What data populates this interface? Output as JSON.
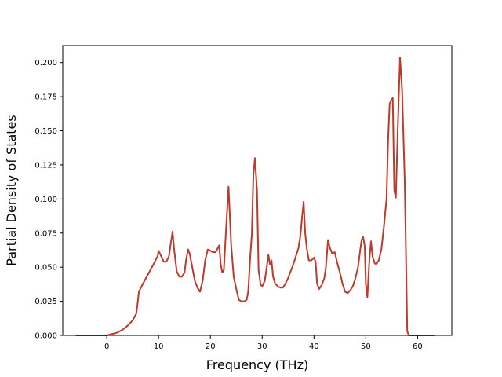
{
  "chart_data": {
    "type": "line",
    "title": "",
    "xlabel": "Frequency (THz)",
    "ylabel": "Partial Density of States",
    "xlim": [
      -8.5,
      66.6
    ],
    "ylim": [
      0,
      0.2125
    ],
    "xticks": [
      0,
      10,
      20,
      30,
      40,
      50,
      60
    ],
    "yticks": [
      0.0,
      0.025,
      0.05,
      0.075,
      0.1,
      0.125,
      0.15,
      0.175,
      0.2
    ],
    "ytick_labels": [
      "0.000",
      "0.025",
      "0.050",
      "0.075",
      "0.100",
      "0.125",
      "0.150",
      "0.175",
      "0.200"
    ],
    "grid": false,
    "legend": "none",
    "line_color": "#c0392b",
    "series": [
      {
        "x": [
          -6.0,
          -2.0,
          0.0,
          1.0,
          2.0,
          3.0,
          4.0,
          5.0,
          5.7,
          6.0,
          6.2,
          7.0,
          8.0,
          9.0,
          9.8,
          10.0,
          10.5,
          11.0,
          11.5,
          12.0,
          12.3,
          12.7,
          13.0,
          13.5,
          14.0,
          14.5,
          15.0,
          15.3,
          15.7,
          16.0,
          17.0,
          17.5,
          18.0,
          18.5,
          19.0,
          19.5,
          20.0,
          20.5,
          21.0,
          21.3,
          21.7,
          22.0,
          22.3,
          22.6,
          23.0,
          23.5,
          24.0,
          24.5,
          25.0,
          25.5,
          26.0,
          26.5,
          27.0,
          27.3,
          27.7,
          28.0,
          28.3,
          28.6,
          29.0,
          29.3,
          29.7,
          30.0,
          30.5,
          30.8,
          31.2,
          31.5,
          31.8,
          32.1,
          32.5,
          33.0,
          33.5,
          34.0,
          34.5,
          35.0,
          36.0,
          36.5,
          37.0,
          37.4,
          37.7,
          38.0,
          38.3,
          38.6,
          39.0,
          39.5,
          40.0,
          40.3,
          40.6,
          41.0,
          41.5,
          42.0,
          42.3,
          42.7,
          43.0,
          43.5,
          44.0,
          44.5,
          45.0,
          45.5,
          46.0,
          46.5,
          47.0,
          47.5,
          48.0,
          48.5,
          48.9,
          49.2,
          49.5,
          49.8,
          50.0,
          50.3,
          50.7,
          51.0,
          51.3,
          51.7,
          52.0,
          52.5,
          53.0,
          53.5,
          54.0,
          54.3,
          54.6,
          55.0,
          55.2,
          55.5,
          55.8,
          56.2,
          56.6,
          57.0,
          57.5,
          57.8,
          58.0,
          58.3,
          60.0,
          63.3
        ],
        "y": [
          0.0,
          0.0,
          0.0,
          0.001,
          0.002,
          0.004,
          0.007,
          0.011,
          0.016,
          0.025,
          0.032,
          0.038,
          0.045,
          0.052,
          0.058,
          0.062,
          0.058,
          0.054,
          0.054,
          0.058,
          0.066,
          0.076,
          0.063,
          0.047,
          0.043,
          0.043,
          0.046,
          0.055,
          0.063,
          0.06,
          0.04,
          0.035,
          0.032,
          0.04,
          0.055,
          0.063,
          0.062,
          0.061,
          0.061,
          0.063,
          0.066,
          0.052,
          0.046,
          0.048,
          0.076,
          0.109,
          0.067,
          0.043,
          0.034,
          0.026,
          0.025,
          0.025,
          0.026,
          0.032,
          0.058,
          0.074,
          0.118,
          0.13,
          0.106,
          0.048,
          0.037,
          0.036,
          0.04,
          0.048,
          0.059,
          0.052,
          0.055,
          0.043,
          0.038,
          0.036,
          0.035,
          0.035,
          0.038,
          0.042,
          0.052,
          0.058,
          0.064,
          0.074,
          0.087,
          0.098,
          0.075,
          0.064,
          0.055,
          0.055,
          0.057,
          0.054,
          0.038,
          0.034,
          0.037,
          0.042,
          0.05,
          0.07,
          0.065,
          0.06,
          0.061,
          0.053,
          0.046,
          0.038,
          0.032,
          0.031,
          0.033,
          0.036,
          0.042,
          0.05,
          0.062,
          0.07,
          0.072,
          0.065,
          0.038,
          0.028,
          0.056,
          0.069,
          0.058,
          0.053,
          0.052,
          0.055,
          0.063,
          0.08,
          0.1,
          0.143,
          0.17,
          0.173,
          0.174,
          0.106,
          0.101,
          0.155,
          0.204,
          0.18,
          0.115,
          0.05,
          0.003,
          0.0,
          0.0,
          0.0
        ]
      }
    ]
  }
}
